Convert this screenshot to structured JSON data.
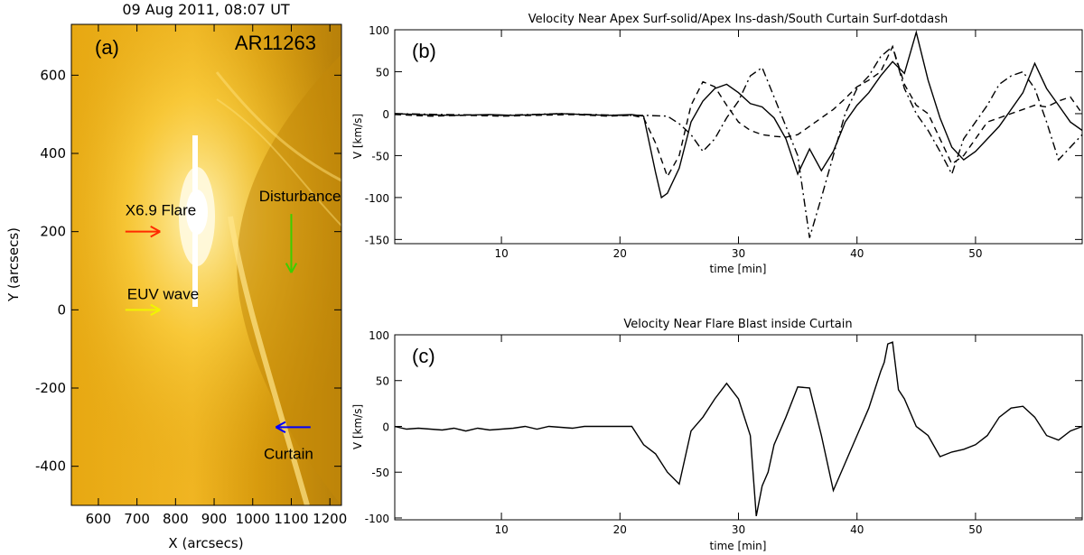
{
  "chart_data": [
    {
      "panel": "(a)",
      "type": "image",
      "title": "09 Aug 2011, 08:07 UT",
      "region_label": "AR11263",
      "xlabel": "X (arcsecs)",
      "ylabel": "Y (arcsecs)",
      "xlim": [
        530,
        1230
      ],
      "ylim": [
        -500,
        730
      ],
      "xticks": [
        600,
        700,
        800,
        900,
        1000,
        1100,
        1200
      ],
      "yticks": [
        -400,
        -200,
        0,
        200,
        400,
        600
      ],
      "colors": {
        "background": "#d9a10c",
        "limb_glow": "#ffe37a",
        "flare_core": "#ffffff"
      },
      "annotations": [
        {
          "text": "X6.9 Flare",
          "color": "#ff2a00",
          "arrow": {
            "from": [
              670,
              200
            ],
            "to": [
              760,
              200
            ]
          }
        },
        {
          "text": "EUV wave",
          "color": "#f1f500",
          "arrow": {
            "from": [
              670,
              0
            ],
            "to": [
              760,
              0
            ]
          }
        },
        {
          "text": "Disturbance",
          "color": "#3ccf00",
          "arrow": {
            "from": [
              1100,
              245
            ],
            "to": [
              1100,
              95
            ]
          }
        },
        {
          "text": "Curtain",
          "color": "#0000ff",
          "arrow": {
            "from": [
              1150,
              -300
            ],
            "to": [
              1060,
              -300
            ]
          }
        }
      ]
    },
    {
      "panel": "(b)",
      "type": "line",
      "title": "Velocity Near Apex Surf-solid/Apex Ins-dash/South Curtain Surf-dotdash",
      "xlabel": "time [min]",
      "ylabel": "V [km/s]",
      "xlim": [
        1,
        59
      ],
      "ylim": [
        -155,
        100
      ],
      "xticks": [
        10,
        20,
        30,
        40,
        50
      ],
      "yticks": [
        -150,
        -100,
        -50,
        0,
        50,
        100
      ],
      "series": [
        {
          "style": "solid",
          "values": [
            [
              1,
              0
            ],
            [
              3,
              -1
            ],
            [
              6,
              -2
            ],
            [
              9,
              -1
            ],
            [
              11,
              -2
            ],
            [
              13,
              -1
            ],
            [
              15,
              0
            ],
            [
              17,
              -1
            ],
            [
              19,
              -2
            ],
            [
              21,
              -1
            ],
            [
              22,
              -3
            ],
            [
              23,
              -70
            ],
            [
              23.5,
              -100
            ],
            [
              24,
              -95
            ],
            [
              25,
              -65
            ],
            [
              26,
              -10
            ],
            [
              27,
              15
            ],
            [
              28,
              30
            ],
            [
              29,
              35
            ],
            [
              30,
              25
            ],
            [
              31,
              12
            ],
            [
              32,
              8
            ],
            [
              33,
              -5
            ],
            [
              34,
              -30
            ],
            [
              35,
              -72
            ],
            [
              36,
              -42
            ],
            [
              37,
              -68
            ],
            [
              38,
              -45
            ],
            [
              39,
              -10
            ],
            [
              40,
              10
            ],
            [
              41,
              25
            ],
            [
              42,
              45
            ],
            [
              43,
              62
            ],
            [
              44,
              48
            ],
            [
              45,
              97
            ],
            [
              46,
              40
            ],
            [
              47,
              -5
            ],
            [
              48,
              -40
            ],
            [
              49,
              -55
            ],
            [
              50,
              -45
            ],
            [
              52,
              -15
            ],
            [
              54,
              25
            ],
            [
              55,
              60
            ],
            [
              56,
              30
            ],
            [
              57,
              10
            ],
            [
              58,
              -10
            ],
            [
              59,
              -20
            ]
          ]
        },
        {
          "style": "dash",
          "values": [
            [
              1,
              -1
            ],
            [
              4,
              -3
            ],
            [
              7,
              -2
            ],
            [
              10,
              -3
            ],
            [
              13,
              -2
            ],
            [
              16,
              -1
            ],
            [
              19,
              -3
            ],
            [
              21,
              -2
            ],
            [
              22,
              -5
            ],
            [
              23,
              -35
            ],
            [
              24,
              -75
            ],
            [
              25,
              -50
            ],
            [
              26,
              10
            ],
            [
              27,
              38
            ],
            [
              28,
              32
            ],
            [
              29,
              10
            ],
            [
              30,
              -10
            ],
            [
              31,
              -20
            ],
            [
              32,
              -25
            ],
            [
              33,
              -27
            ],
            [
              34,
              -28
            ],
            [
              35,
              -25
            ],
            [
              36,
              -15
            ],
            [
              37,
              -5
            ],
            [
              38,
              5
            ],
            [
              39,
              18
            ],
            [
              40,
              32
            ],
            [
              41,
              40
            ],
            [
              42,
              50
            ],
            [
              43,
              80
            ],
            [
              44,
              35
            ],
            [
              45,
              10
            ],
            [
              46,
              0
            ],
            [
              47,
              -30
            ],
            [
              48,
              -60
            ],
            [
              49,
              -50
            ],
            [
              50,
              -30
            ],
            [
              51,
              -10
            ],
            [
              52,
              -5
            ],
            [
              53,
              0
            ],
            [
              54,
              5
            ],
            [
              55,
              10
            ],
            [
              56,
              8
            ],
            [
              57,
              15
            ],
            [
              58,
              20
            ],
            [
              59,
              0
            ]
          ]
        },
        {
          "style": "dotdash",
          "values": [
            [
              1,
              0
            ],
            [
              5,
              -1
            ],
            [
              10,
              -2
            ],
            [
              15,
              0
            ],
            [
              20,
              -2
            ],
            [
              22,
              -2
            ],
            [
              24,
              -3
            ],
            [
              25,
              -12
            ],
            [
              26,
              -25
            ],
            [
              27,
              -45
            ],
            [
              28,
              -30
            ],
            [
              29,
              -5
            ],
            [
              30,
              15
            ],
            [
              31,
              45
            ],
            [
              32,
              55
            ],
            [
              33,
              20
            ],
            [
              34,
              -15
            ],
            [
              35,
              -50
            ],
            [
              36,
              -148
            ],
            [
              37,
              -100
            ],
            [
              38,
              -50
            ],
            [
              39,
              0
            ],
            [
              40,
              30
            ],
            [
              41,
              45
            ],
            [
              42,
              68
            ],
            [
              43,
              80
            ],
            [
              44,
              30
            ],
            [
              45,
              0
            ],
            [
              46,
              -20
            ],
            [
              47,
              -45
            ],
            [
              48,
              -72
            ],
            [
              49,
              -30
            ],
            [
              50,
              -10
            ],
            [
              51,
              10
            ],
            [
              52,
              35
            ],
            [
              53,
              45
            ],
            [
              54,
              50
            ],
            [
              55,
              30
            ],
            [
              56,
              -10
            ],
            [
              57,
              -55
            ],
            [
              58,
              -40
            ],
            [
              59,
              -25
            ]
          ]
        }
      ]
    },
    {
      "panel": "(c)",
      "type": "line",
      "title": "Velocity Near Flare Blast inside Curtain",
      "xlabel": "time [min]",
      "ylabel": "V [km/s]",
      "xlim": [
        1,
        59
      ],
      "ylim": [
        -102,
        100
      ],
      "xticks": [
        10,
        20,
        30,
        40,
        50
      ],
      "yticks": [
        -100,
        -50,
        0,
        50,
        100
      ],
      "series": [
        {
          "style": "solid",
          "values": [
            [
              1,
              0
            ],
            [
              2,
              -3
            ],
            [
              3,
              -2
            ],
            [
              4,
              -3
            ],
            [
              5,
              -4
            ],
            [
              6,
              -2
            ],
            [
              7,
              -5
            ],
            [
              8,
              -2
            ],
            [
              9,
              -4
            ],
            [
              10,
              -3
            ],
            [
              11,
              -2
            ],
            [
              12,
              0
            ],
            [
              13,
              -3
            ],
            [
              14,
              0
            ],
            [
              15,
              -1
            ],
            [
              16,
              -2
            ],
            [
              17,
              0
            ],
            [
              18,
              0
            ],
            [
              20,
              0
            ],
            [
              21,
              0
            ],
            [
              22,
              -20
            ],
            [
              23,
              -30
            ],
            [
              24,
              -50
            ],
            [
              25,
              -63
            ],
            [
              26,
              -5
            ],
            [
              27,
              10
            ],
            [
              28,
              30
            ],
            [
              29,
              47
            ],
            [
              30,
              30
            ],
            [
              31,
              -10
            ],
            [
              31.5,
              -98
            ],
            [
              32,
              -65
            ],
            [
              32.5,
              -50
            ],
            [
              33,
              -20
            ],
            [
              34,
              10
            ],
            [
              35,
              43
            ],
            [
              36,
              42
            ],
            [
              37,
              -10
            ],
            [
              38,
              -70
            ],
            [
              39,
              -40
            ],
            [
              40,
              -10
            ],
            [
              41,
              20
            ],
            [
              42,
              60
            ],
            [
              42.3,
              70
            ],
            [
              42.6,
              90
            ],
            [
              43,
              92
            ],
            [
              43.5,
              40
            ],
            [
              44,
              30
            ],
            [
              45,
              0
            ],
            [
              46,
              -10
            ],
            [
              47,
              -33
            ],
            [
              48,
              -28
            ],
            [
              49,
              -25
            ],
            [
              50,
              -20
            ],
            [
              51,
              -10
            ],
            [
              52,
              10
            ],
            [
              53,
              20
            ],
            [
              54,
              22
            ],
            [
              55,
              10
            ],
            [
              56,
              -10
            ],
            [
              57,
              -15
            ],
            [
              58,
              -5
            ],
            [
              59,
              0
            ]
          ]
        }
      ]
    }
  ]
}
